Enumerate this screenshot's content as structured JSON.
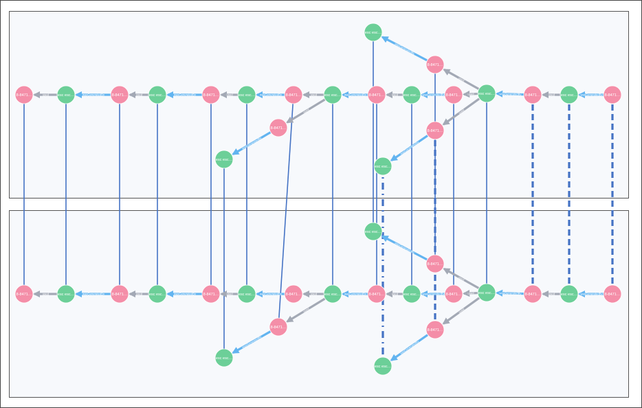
{
  "colors": {
    "file_node": "#f48ea8",
    "process_node": "#6ccf98",
    "used_edge": "#a3a9b5",
    "generated_edge": "#62b4f0",
    "link": "#4472c4"
  },
  "node_types": {
    "process": "esc esc…",
    "file": "8-8471…",
    "process_short": "esc esc…"
  },
  "edge_types": {
    "used": "used",
    "wasGeneratedBy": "wasGeneratedBy",
    "wasGenerated_short": "wasGenerat…",
    "wasGen_short": "wasGen…"
  }
}
